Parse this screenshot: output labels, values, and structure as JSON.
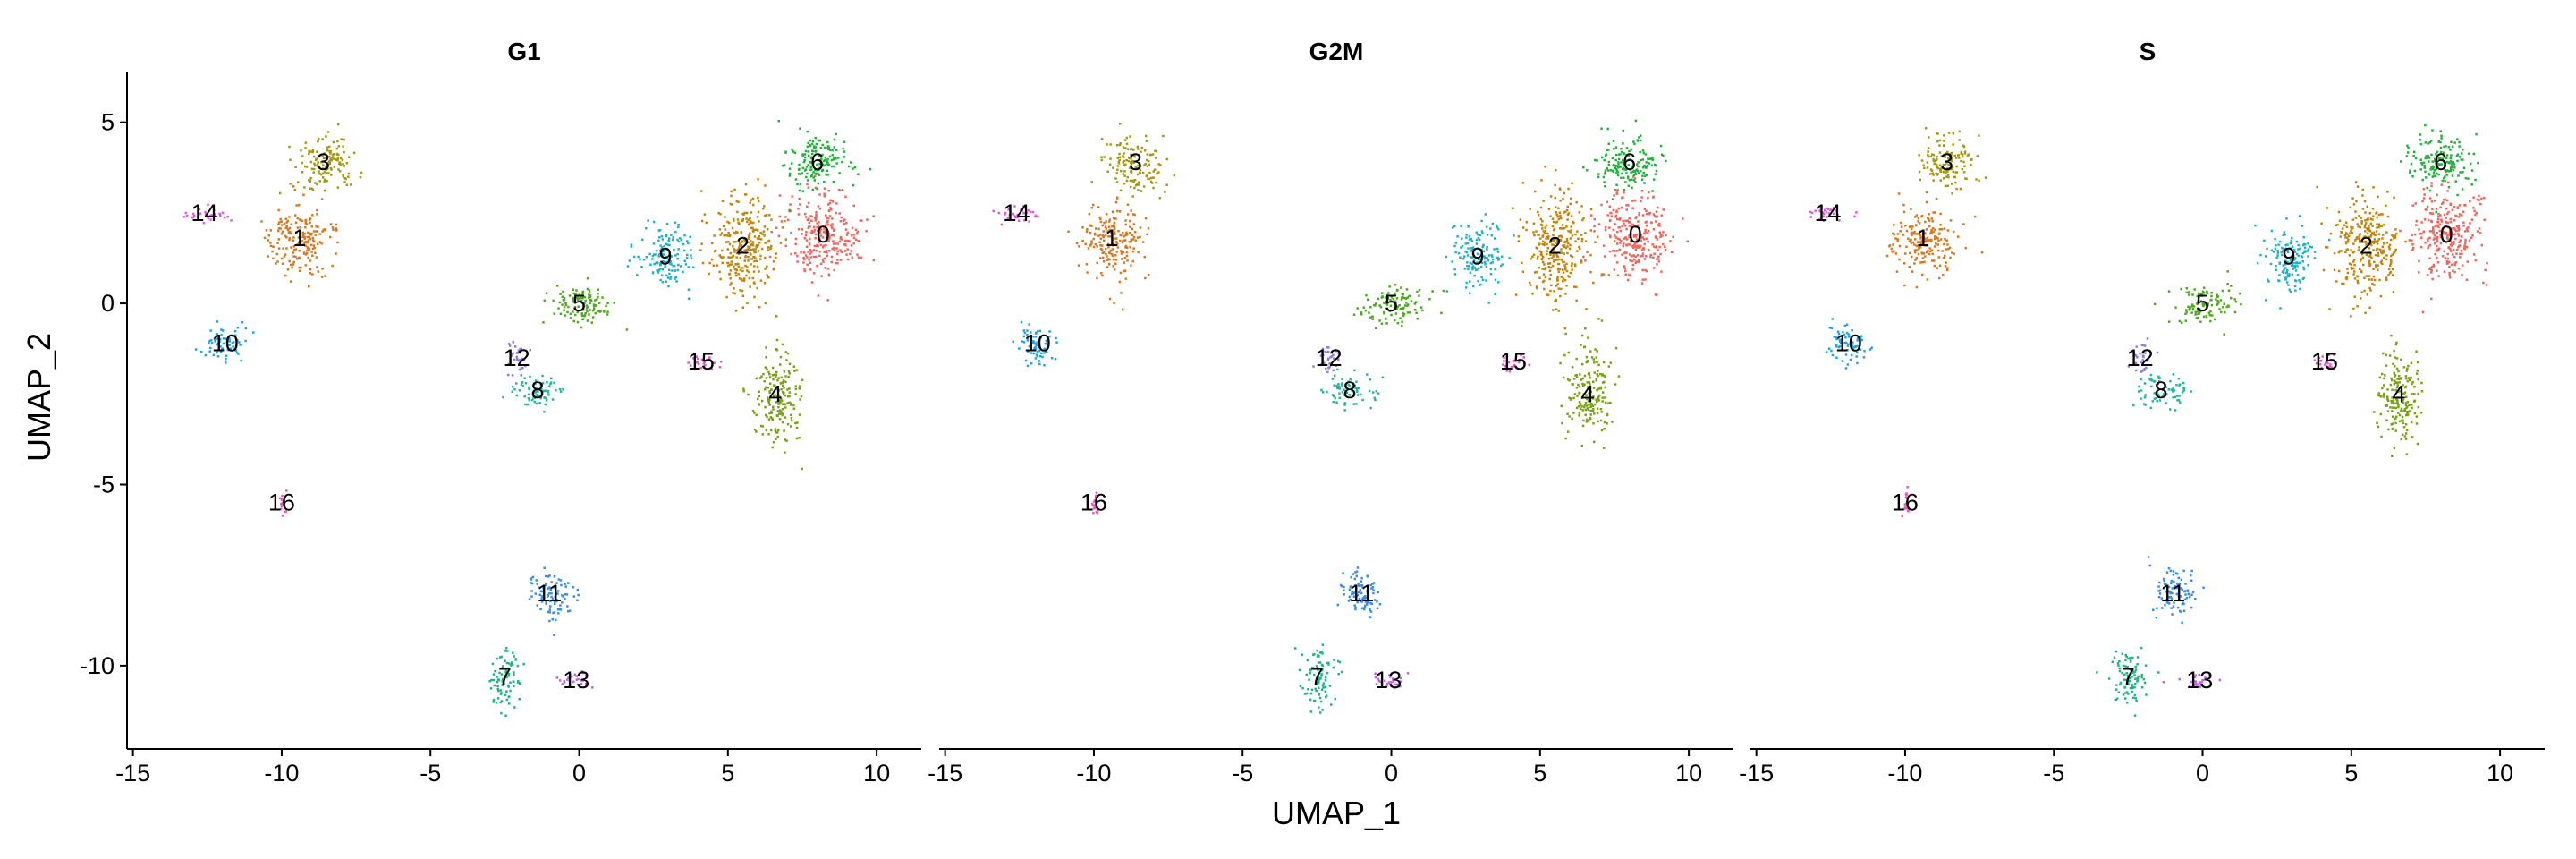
{
  "chart_data": {
    "type": "scatter",
    "xlabel": "UMAP_1",
    "ylabel": "UMAP_2",
    "xlim": [
      -15.2,
      11.5
    ],
    "ylim": [
      -12.3,
      6.4
    ],
    "x_ticks": [
      -15,
      -10,
      -5,
      0,
      5,
      10
    ],
    "y_ticks": [
      -10,
      -5,
      0,
      5
    ],
    "grid": false,
    "legend": "none",
    "cluster_colors": {
      "0": "#F8766D",
      "1": "#E58700",
      "2": "#C99800",
      "3": "#A3A500",
      "4": "#6BB100",
      "5": "#00BA38",
      "6": "#00BF7D",
      "7": "#00C0AF",
      "8": "#00BCD8",
      "9": "#00B0F6",
      "10": "#619CFF",
      "11": "#B983FF",
      "12": "#E76BF3",
      "13": "#FD61D1",
      "14": "#FF67A4",
      "15": "#FF6C91",
      "16": "#E6599E"
    },
    "clusters": [
      {
        "id": "0",
        "x": 8.2,
        "y": 1.9,
        "sx": 1.1,
        "sy": 1.1,
        "color": "#F1665E"
      },
      {
        "id": "1",
        "x": -9.4,
        "y": 1.8,
        "sx": 1.0,
        "sy": 0.9,
        "color": "#D9781F"
      },
      {
        "id": "2",
        "x": 5.5,
        "y": 1.6,
        "sx": 1.0,
        "sy": 1.3,
        "color": "#C4860A"
      },
      {
        "id": "3",
        "x": -8.6,
        "y": 3.9,
        "sx": 0.9,
        "sy": 0.7,
        "color": "#A39A12"
      },
      {
        "id": "4",
        "x": 6.6,
        "y": -2.5,
        "sx": 0.7,
        "sy": 1.2,
        "color": "#7BA216"
      },
      {
        "id": "5",
        "x": 0.0,
        "y": 0.0,
        "sx": 1.0,
        "sy": 0.5,
        "color": "#4EAA1F"
      },
      {
        "id": "6",
        "x": 8.0,
        "y": 3.9,
        "sx": 1.0,
        "sy": 0.7,
        "color": "#22B33A"
      },
      {
        "id": "7",
        "x": -2.5,
        "y": -10.3,
        "sx": 0.5,
        "sy": 0.8,
        "color": "#1EB686"
      },
      {
        "id": "8",
        "x": -1.4,
        "y": -2.4,
        "sx": 0.8,
        "sy": 0.4,
        "color": "#27B5A0"
      },
      {
        "id": "9",
        "x": 2.9,
        "y": 1.3,
        "sx": 0.8,
        "sy": 0.8,
        "color": "#22B2C6"
      },
      {
        "id": "10",
        "x": -11.9,
        "y": -1.1,
        "sx": 0.6,
        "sy": 0.5,
        "color": "#20A4E6"
      },
      {
        "id": "11",
        "x": -1.0,
        "y": -8.0,
        "sx": 0.7,
        "sy": 0.6,
        "color": "#3A8EEA"
      },
      {
        "id": "12",
        "x": -2.1,
        "y": -1.5,
        "sx": 0.35,
        "sy": 0.4,
        "color": "#8F7AE9"
      },
      {
        "id": "13",
        "x": -0.1,
        "y": -10.4,
        "sx": 0.6,
        "sy": 0.2,
        "color": "#C460EC"
      },
      {
        "id": "14",
        "x": -12.6,
        "y": 2.5,
        "sx": 0.7,
        "sy": 0.2,
        "color": "#E25BD8"
      },
      {
        "id": "15",
        "x": 4.1,
        "y": -1.6,
        "sx": 0.4,
        "sy": 0.2,
        "color": "#E659C8"
      },
      {
        "id": "16",
        "x": -10.0,
        "y": -5.5,
        "sx": 0.1,
        "sy": 0.3,
        "color": "#E45ABE"
      }
    ],
    "panels": [
      {
        "title": "G1"
      },
      {
        "title": "G2M"
      },
      {
        "title": "S"
      }
    ]
  }
}
